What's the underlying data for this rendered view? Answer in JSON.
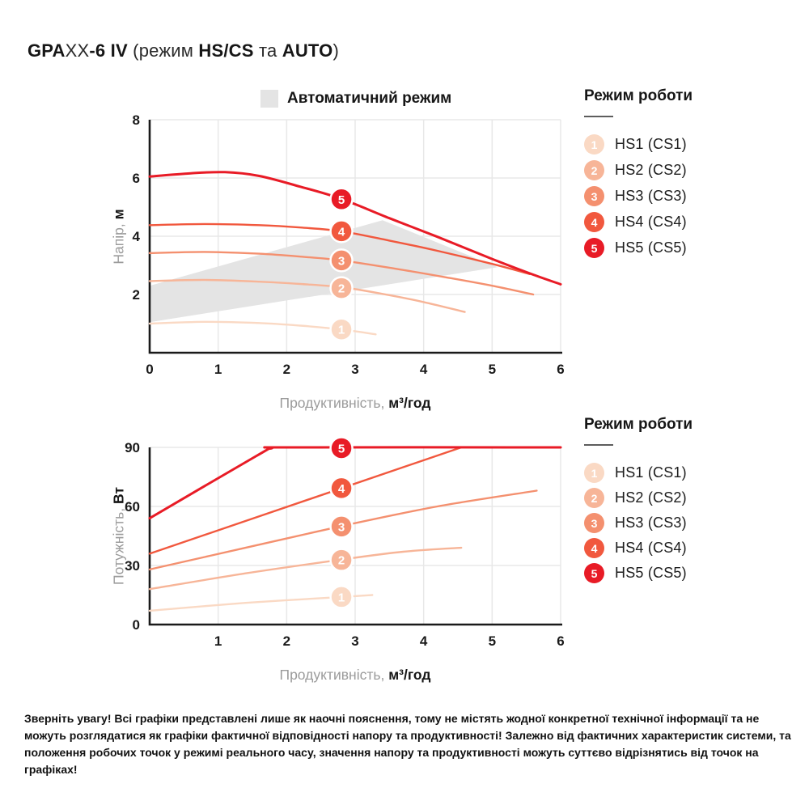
{
  "page_title": {
    "parts": [
      {
        "text": "GPA",
        "bold": true
      },
      {
        "text": "XX",
        "bold": false
      },
      {
        "text": "-6 IV",
        "bold": true
      },
      {
        "text": " (режим ",
        "bold": false
      },
      {
        "text": "HS/CS",
        "bold": true
      },
      {
        "text": " та ",
        "bold": false
      },
      {
        "text": "AUTO",
        "bold": true
      },
      {
        "text": ")",
        "bold": false
      }
    ]
  },
  "auto_legend": {
    "label": "Автоматичний режим",
    "swatch_color": "#e4e4e4"
  },
  "legend": {
    "title": "Режим роботи",
    "items": [
      {
        "num": "1",
        "label": "HS1 (CS1)",
        "color": "#fad9c4"
      },
      {
        "num": "2",
        "label": "HS2 (CS2)",
        "color": "#f7b598"
      },
      {
        "num": "3",
        "label": "HS3 (CS3)",
        "color": "#f4906f"
      },
      {
        "num": "4",
        "label": "HS4 (CS4)",
        "color": "#f1583e"
      },
      {
        "num": "5",
        "label": "HS5 (CS5)",
        "color": "#e81b26"
      }
    ]
  },
  "colors": {
    "grid": "#e8e8e8",
    "axis": "#1a1a1a",
    "region": "#e4e4e4",
    "hs1": "#fad9c4",
    "hs2": "#f7b598",
    "hs3": "#f4906f",
    "hs4": "#f1583e",
    "hs5": "#e81b26"
  },
  "chart_data": [
    {
      "type": "line",
      "title": "Автоматичний режим (заштрихована зона)",
      "xlabel": "Продуктивність, м³/год",
      "ylabel": "Напір, м",
      "xlabel_light": "Продуктивність,",
      "xlabel_bold": "м³/год",
      "ylabel_light": "Напір,",
      "ylabel_bold": "м",
      "xlim": [
        0,
        6
      ],
      "ylim": [
        0,
        8
      ],
      "xticks": [
        0,
        1,
        2,
        3,
        4,
        5,
        6
      ],
      "yticks": [
        2,
        4,
        6,
        8
      ],
      "grid": true,
      "legend_position": "right",
      "region": {
        "label": "Автоматичний режим",
        "color": "#e4e4e4",
        "points": [
          [
            0,
            2.3
          ],
          [
            3.4,
            4.55
          ],
          [
            5.08,
            2.94
          ],
          [
            0,
            1.05
          ]
        ]
      },
      "series": [
        {
          "name": "HS1 (CS1)",
          "color": "#fad9c4",
          "width": 2.4,
          "points": [
            [
              0,
              1.0
            ],
            [
              0.8,
              1.06
            ],
            [
              1.6,
              1.02
            ],
            [
              2.2,
              0.93
            ],
            [
              2.8,
              0.8
            ],
            [
              3.3,
              0.63
            ]
          ]
        },
        {
          "name": "HS2 (CS2)",
          "color": "#f7b598",
          "width": 2.4,
          "points": [
            [
              0,
              2.46
            ],
            [
              0.8,
              2.5
            ],
            [
              1.6,
              2.44
            ],
            [
              2.2,
              2.36
            ],
            [
              2.8,
              2.25
            ],
            [
              3.4,
              2.02
            ],
            [
              4,
              1.74
            ],
            [
              4.6,
              1.4
            ]
          ]
        },
        {
          "name": "HS3 (CS3)",
          "color": "#f4906f",
          "width": 2.4,
          "points": [
            [
              0,
              3.42
            ],
            [
              0.8,
              3.46
            ],
            [
              1.6,
              3.4
            ],
            [
              2.2,
              3.3
            ],
            [
              2.8,
              3.17
            ],
            [
              3.6,
              2.88
            ],
            [
              4.3,
              2.6
            ],
            [
              5,
              2.3
            ],
            [
              5.6,
              2.0
            ]
          ]
        },
        {
          "name": "HS4 (CS4)",
          "color": "#f1583e",
          "width": 2.4,
          "points": [
            [
              0,
              4.38
            ],
            [
              0.8,
              4.42
            ],
            [
              1.6,
              4.38
            ],
            [
              2.2,
              4.3
            ],
            [
              2.8,
              4.17
            ],
            [
              3.5,
              3.85
            ],
            [
              4.2,
              3.5
            ],
            [
              5,
              3.05
            ],
            [
              5.55,
              2.7
            ]
          ]
        },
        {
          "name": "HS5 (CS5)",
          "color": "#e81b26",
          "width": 3,
          "points": [
            [
              0,
              6.05
            ],
            [
              0.6,
              6.16
            ],
            [
              1.1,
              6.2
            ],
            [
              1.6,
              6.07
            ],
            [
              2.2,
              5.7
            ],
            [
              2.8,
              5.28
            ],
            [
              3.5,
              4.62
            ],
            [
              4.2,
              3.98
            ],
            [
              5,
              3.22
            ],
            [
              5.6,
              2.68
            ],
            [
              6,
              2.35
            ]
          ]
        }
      ],
      "badges": [
        {
          "x": 2.8,
          "y": 0.8,
          "num": "1",
          "color": "#fad9c4"
        },
        {
          "x": 2.8,
          "y": 2.22,
          "num": "2",
          "color": "#f7b598"
        },
        {
          "x": 2.8,
          "y": 3.17,
          "num": "3",
          "color": "#f4906f"
        },
        {
          "x": 2.8,
          "y": 4.17,
          "num": "4",
          "color": "#f1583e"
        },
        {
          "x": 2.8,
          "y": 5.27,
          "num": "5",
          "color": "#e81b26"
        }
      ]
    },
    {
      "type": "line",
      "title": "",
      "xlabel": "Продуктивність, м³/год",
      "ylabel": "Потужність, Вт",
      "xlabel_light": "Продуктивність,",
      "xlabel_bold": "м³/год",
      "ylabel_light": "Потужність,",
      "ylabel_bold": "Вт",
      "xlim": [
        0,
        6
      ],
      "ylim": [
        0,
        90
      ],
      "xticks": [
        1,
        2,
        3,
        4,
        5,
        6
      ],
      "yticks": [
        0,
        30,
        60,
        90
      ],
      "grid": true,
      "legend_position": "right",
      "series": [
        {
          "name": "HS1 (CS1)",
          "color": "#fad9c4",
          "width": 2.4,
          "points": [
            [
              0,
              7
            ],
            [
              1.4,
              11
            ],
            [
              2.8,
              14
            ],
            [
              3.25,
              15
            ]
          ]
        },
        {
          "name": "HS2 (CS2)",
          "color": "#f7b598",
          "width": 2.4,
          "points": [
            [
              0,
              18
            ],
            [
              1.4,
              26
            ],
            [
              2.8,
              33
            ],
            [
              3.7,
              37
            ],
            [
              4.55,
              39
            ]
          ]
        },
        {
          "name": "HS3 (CS3)",
          "color": "#f4906f",
          "width": 2.4,
          "points": [
            [
              0,
              28
            ],
            [
              1.4,
              39
            ],
            [
              2.8,
              50
            ],
            [
              4.2,
              60
            ],
            [
              5.65,
              68
            ]
          ]
        },
        {
          "name": "HS4 (CS4)",
          "color": "#f1583e",
          "width": 2.4,
          "points": [
            [
              0,
              36
            ],
            [
              4.55,
              90
            ]
          ]
        },
        {
          "name": "HS5 (CS5)",
          "color": "#e81b26",
          "width": 3,
          "points": [
            [
              0,
              54
            ],
            [
              1.55,
              85.5
            ],
            [
              1.78,
              89.5
            ],
            [
              2.05,
              90
            ],
            [
              6,
              90
            ]
          ]
        }
      ],
      "badges": [
        {
          "x": 2.8,
          "y": 14,
          "num": "1",
          "color": "#fad9c4"
        },
        {
          "x": 2.8,
          "y": 32.8,
          "num": "2",
          "color": "#f7b598"
        },
        {
          "x": 2.8,
          "y": 49.8,
          "num": "3",
          "color": "#f4906f"
        },
        {
          "x": 2.8,
          "y": 69.3,
          "num": "4",
          "color": "#f1583e"
        },
        {
          "x": 2.8,
          "y": 89.6,
          "num": "5",
          "color": "#e81b26"
        }
      ]
    }
  ],
  "disclaimer": "Зверніть увагу! Всі графіки представлені лише як наочні пояснення, тому не містять жодної конкретної технічної інформації та не можуть розглядатися як графіки фактичної відповідності напору та продуктивності! Залежно від фактичних характеристик системи, та положення робочих точок у режимі реального часу, значення напору та продуктивності можуть суттєво відрізнятись від точок на графіках!"
}
